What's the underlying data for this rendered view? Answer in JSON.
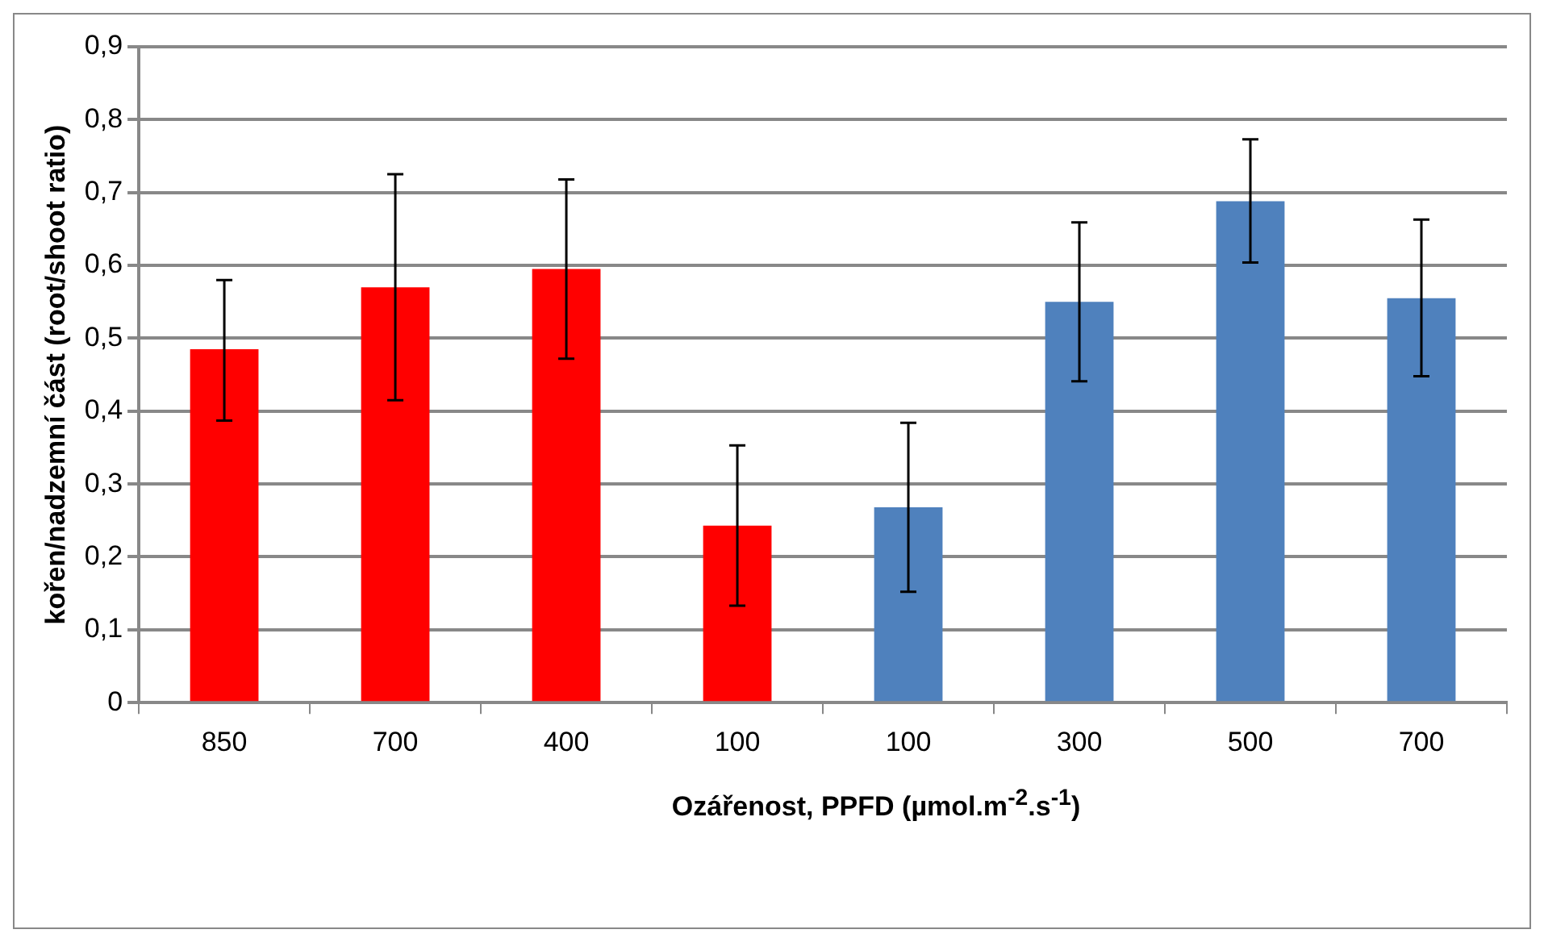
{
  "chart_data": {
    "type": "bar",
    "xlabel": "Ozářenost, PPFD (µmol.m$^{-2}$.s$^{-1}$)",
    "ylabel": "kořen/nadzemní část (root/shoot ratio)",
    "categories": [
      "850",
      "700",
      "400",
      "100",
      "100",
      "300",
      "500",
      "700"
    ],
    "values": [
      0.485,
      0.57,
      0.595,
      0.243,
      0.268,
      0.55,
      0.688,
      0.555
    ],
    "errors": [
      [
        0.387,
        0.58
      ],
      [
        0.415,
        0.725
      ],
      [
        0.472,
        0.718
      ],
      [
        0.133,
        0.353
      ],
      [
        0.152,
        0.384
      ],
      [
        0.441,
        0.659
      ],
      [
        0.604,
        0.773
      ],
      [
        0.448,
        0.663
      ]
    ],
    "colors": [
      "#ff0000",
      "#ff0000",
      "#ff0000",
      "#ff0000",
      "#4f81bd",
      "#4f81bd",
      "#4f81bd",
      "#4f81bd"
    ],
    "ylim": [
      0,
      0.9
    ],
    "yticks": [
      0,
      {
        "value": 0.1,
        "label": "0,1"
      },
      {
        "value": 0.2,
        "label": "0,2"
      },
      {
        "value": 0.3,
        "label": "0,3"
      },
      {
        "value": 0.4,
        "label": "0,4"
      },
      {
        "value": 0.5,
        "label": "0,5"
      },
      {
        "value": 0.6,
        "label": "0,6"
      },
      {
        "value": 0.7,
        "label": "0,7"
      },
      {
        "value": 0.8,
        "label": "0,8"
      },
      {
        "value": 0.9,
        "label": "0,9"
      }
    ],
    "grid": "y",
    "legend": false
  }
}
